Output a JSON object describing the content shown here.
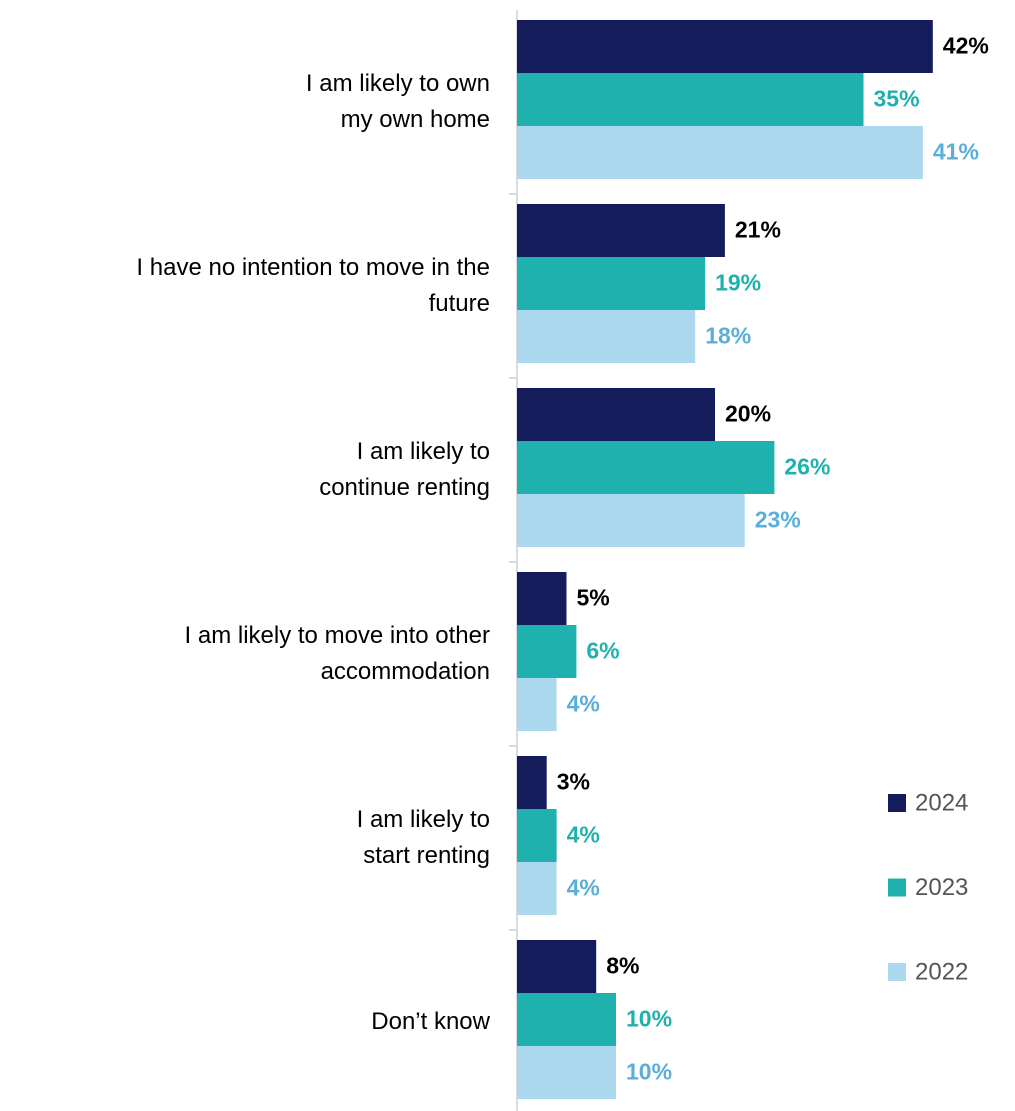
{
  "chart_data": {
    "type": "bar",
    "orientation": "horizontal",
    "categories": [
      "I am likely to own\nmy own home",
      "I have no intention to move in the\nfuture",
      "I am likely to\ncontinue renting",
      "I am likely to move into other\naccommodation",
      "I am likely to\nstart renting",
      "Don’t know"
    ],
    "series": [
      {
        "name": "2024",
        "color": "#141c5c",
        "label_color": "#000000",
        "values": [
          42,
          21,
          20,
          5,
          3,
          8
        ],
        "value_labels": [
          "42%",
          "21%",
          "20%",
          "5%",
          "3%",
          "8%"
        ]
      },
      {
        "name": "2023",
        "color": "#1fb1ad",
        "label_color": "#1fb1ad",
        "values": [
          35,
          19,
          26,
          6,
          4,
          10
        ],
        "value_labels": [
          "35%",
          "19%",
          "26%",
          "6%",
          "4%",
          "10%"
        ]
      },
      {
        "name": "2022",
        "color": "#acd8ee",
        "label_color": "#5aaed8",
        "values": [
          41,
          18,
          23,
          4,
          4,
          10
        ],
        "value_labels": [
          "41%",
          "18%",
          "23%",
          "4%",
          "4%",
          "10%"
        ]
      }
    ],
    "legend": "right"
  }
}
